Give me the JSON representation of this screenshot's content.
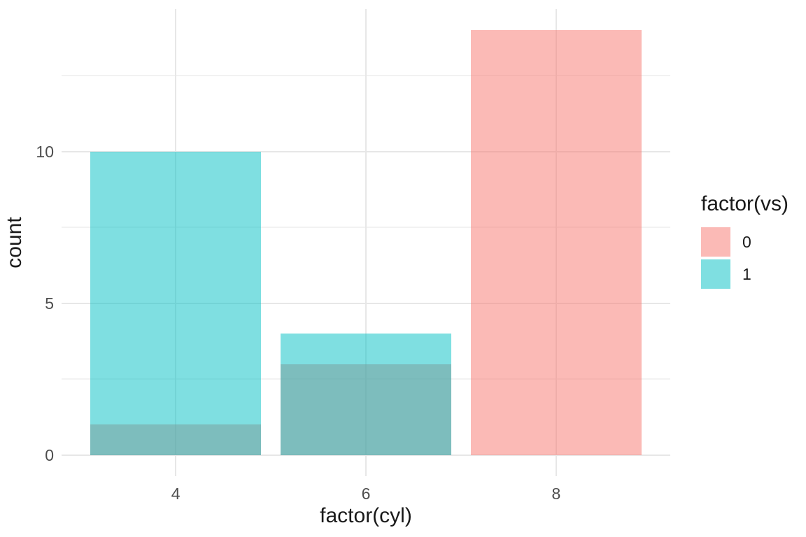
{
  "chart_data": {
    "type": "bar",
    "xlabel": "factor(cyl)",
    "ylabel": "count",
    "categories": [
      "4",
      "6",
      "8"
    ],
    "series": [
      {
        "name": "0",
        "color": "#F8766D",
        "values": [
          1,
          3,
          14
        ]
      },
      {
        "name": "1",
        "color": "#00BFC4",
        "values": [
          10,
          4,
          0
        ]
      }
    ],
    "fill_alpha": 0.5,
    "position": "identity",
    "bar_rel_width": 0.9,
    "y_ticks": [
      0,
      5,
      10
    ],
    "y_minor_ticks": [
      2.5,
      7.5,
      12.5
    ],
    "ylim": [
      -0.7,
      14.7
    ],
    "grid": true,
    "legend": {
      "title": "factor(vs)",
      "position": "right",
      "entries": [
        {
          "label": "0",
          "color": "#F8766D"
        },
        {
          "label": "1",
          "color": "#00BFC4"
        }
      ]
    },
    "theme": {
      "background": "#FFFFFF",
      "grid_major_color": "#E7E7E7",
      "grid_minor_color": "#F2F2F2",
      "tick_label_color": "#4D4D4D",
      "title_color": "#1A1A1A"
    }
  }
}
